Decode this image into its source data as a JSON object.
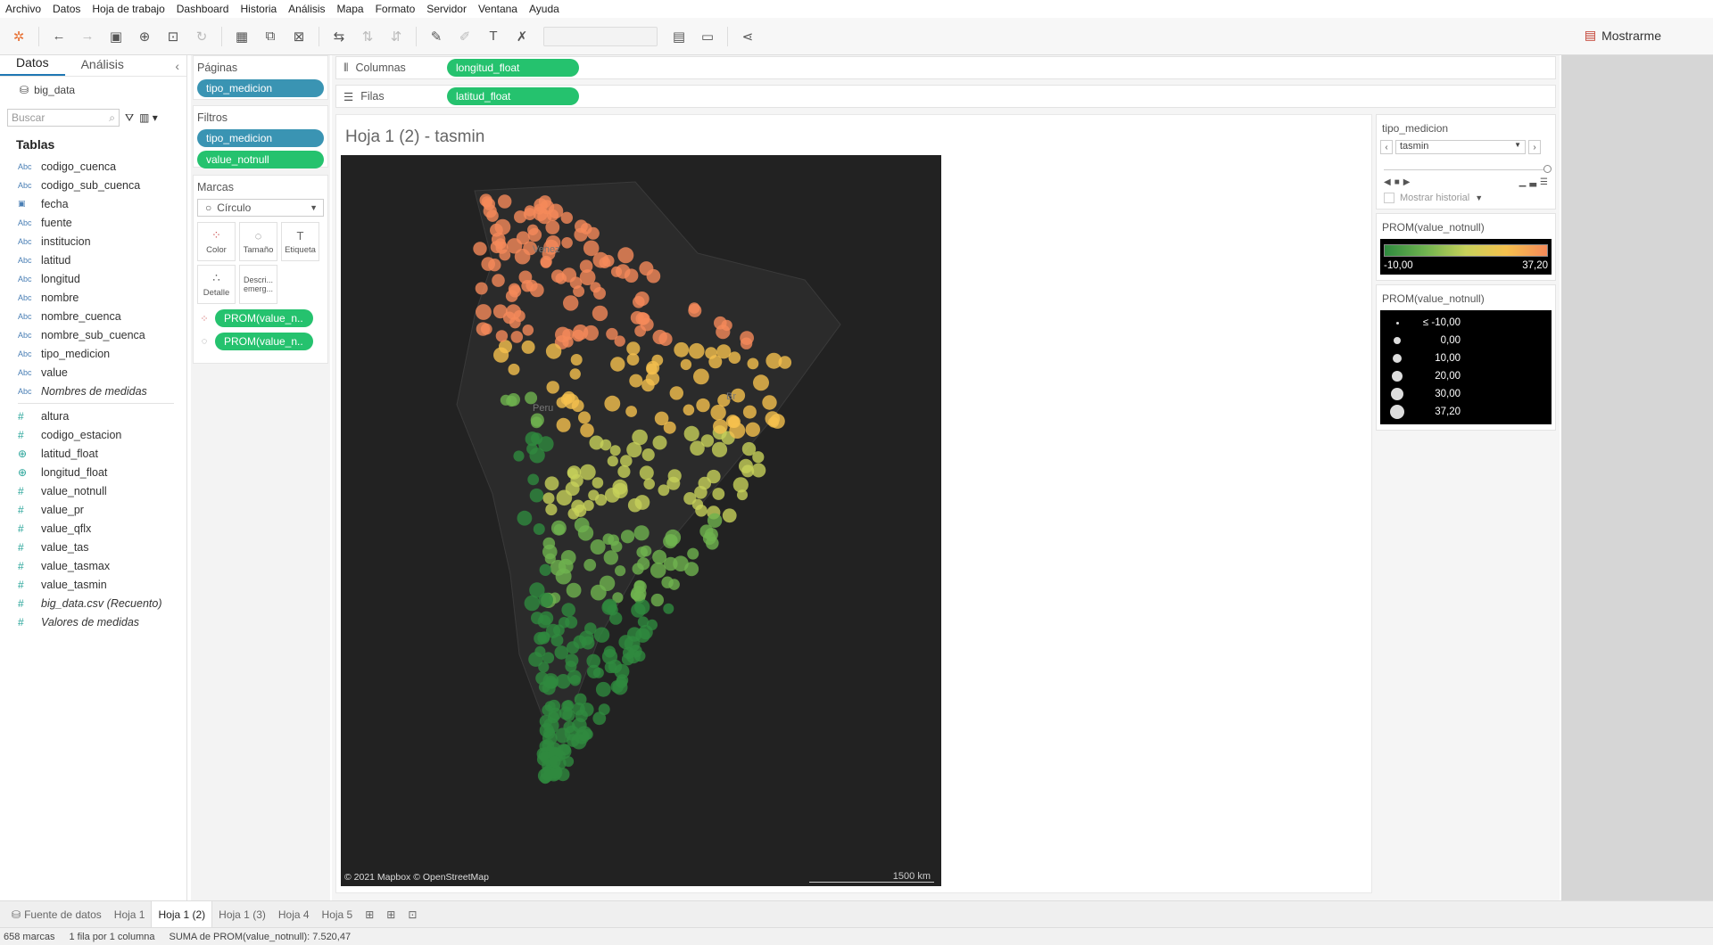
{
  "menu": [
    "Archivo",
    "Datos",
    "Hoja de trabajo",
    "Dashboard",
    "Historia",
    "Análisis",
    "Mapa",
    "Formato",
    "Servidor",
    "Ventana",
    "Ayuda"
  ],
  "toolbar": {
    "show_me": "Mostrarme"
  },
  "data_pane": {
    "tabs": [
      "Datos",
      "Análisis"
    ],
    "datasource": "big_data",
    "search_placeholder": "Buscar",
    "tables_header": "Tablas",
    "dimensions": [
      {
        "icon": "Abc",
        "name": "codigo_cuenca"
      },
      {
        "icon": "Abc",
        "name": "codigo_sub_cuenca"
      },
      {
        "icon": "calendar",
        "name": "fecha"
      },
      {
        "icon": "Abc",
        "name": "fuente"
      },
      {
        "icon": "Abc",
        "name": "institucion"
      },
      {
        "icon": "Abc",
        "name": "latitud"
      },
      {
        "icon": "Abc",
        "name": "longitud"
      },
      {
        "icon": "Abc",
        "name": "nombre"
      },
      {
        "icon": "Abc",
        "name": "nombre_cuenca"
      },
      {
        "icon": "Abc",
        "name": "nombre_sub_cuenca"
      },
      {
        "icon": "Abc",
        "name": "tipo_medicion"
      },
      {
        "icon": "Abc",
        "name": "value"
      },
      {
        "icon": "Abc",
        "name": "Nombres de medidas",
        "italic": true
      }
    ],
    "measures": [
      {
        "icon": "#",
        "name": "altura"
      },
      {
        "icon": "#",
        "name": "codigo_estacion"
      },
      {
        "icon": "globe",
        "name": "latitud_float"
      },
      {
        "icon": "globe",
        "name": "longitud_float"
      },
      {
        "icon": "#",
        "name": "value_notnull"
      },
      {
        "icon": "#",
        "name": "value_pr"
      },
      {
        "icon": "#",
        "name": "value_qflx"
      },
      {
        "icon": "#",
        "name": "value_tas"
      },
      {
        "icon": "#",
        "name": "value_tasmax"
      },
      {
        "icon": "#",
        "name": "value_tasmin"
      },
      {
        "icon": "#",
        "name": "big_data.csv (Recuento)",
        "italic": true
      },
      {
        "icon": "#",
        "name": "Valores de medidas",
        "italic": true
      }
    ]
  },
  "pages": {
    "title": "Páginas",
    "pill": "tipo_medicion"
  },
  "filters": {
    "title": "Filtros",
    "pills": [
      "tipo_medicion",
      "value_notnull"
    ]
  },
  "marks": {
    "title": "Marcas",
    "type": "Círculo",
    "buttons": [
      "Color",
      "Tamaño",
      "Etiqueta",
      "Detalle",
      "Descri... emerg..."
    ],
    "pills": [
      "PROM(value_n..",
      "PROM(value_n.."
    ]
  },
  "shelves": {
    "columns_label": "Columnas",
    "columns_pill": "longitud_float",
    "rows_label": "Filas",
    "rows_pill": "latitud_float"
  },
  "view": {
    "title": "Hoja 1 (2) - tasmin",
    "copyright": "© 2021 Mapbox © OpenStreetMap",
    "scale": "1500 km",
    "labels": [
      "Peru",
      "Br",
      "Venez"
    ]
  },
  "page_control": {
    "title": "tipo_medicion",
    "value": "tasmin",
    "history": "Mostrar historial"
  },
  "color_legend": {
    "title": "PROM(value_notnull)",
    "min": "-10,00",
    "max": "37,20",
    "colors": [
      "#2f8a3f",
      "#6fb34f",
      "#c7d15a",
      "#f5c04d",
      "#f58a5a"
    ]
  },
  "size_legend": {
    "title": "PROM(value_notnull)",
    "items": [
      "≤ -10,00",
      "0,00",
      "10,00",
      "20,00",
      "30,00",
      "37,20"
    ]
  },
  "sheet_tabs": [
    "Fuente de datos",
    "Hoja 1",
    "Hoja 1 (2)",
    "Hoja 1 (3)",
    "Hoja 4",
    "Hoja 5"
  ],
  "status": {
    "marks": "658 marcas",
    "rows": "1 fila por 1 columna",
    "sum": "SUMA de PROM(value_notnull): 7.520,47"
  }
}
